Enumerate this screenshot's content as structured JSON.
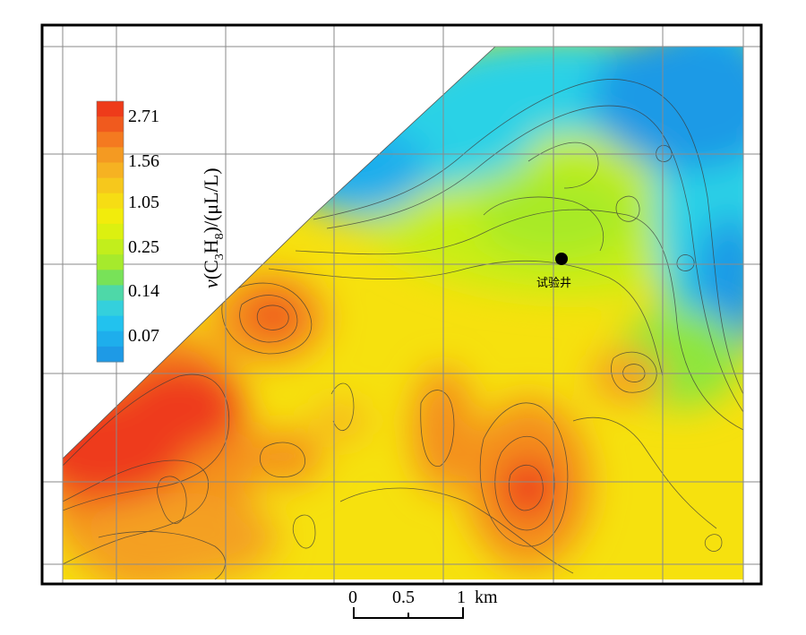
{
  "legend": {
    "labels": [
      "2.71",
      "1.56",
      "1.05",
      "0.25",
      "0.14",
      "0.07"
    ],
    "title_parts": {
      "v": "v",
      "open": "(C",
      "sub3": "3",
      "H": "H",
      "sub8": "8",
      "close": ")/(μL/L)"
    },
    "bands": [
      "#ee3b1a",
      "#f05a1e",
      "#f47a20",
      "#f49a22",
      "#f6b222",
      "#f6c81c",
      "#f6dd14",
      "#f2ec0c",
      "#dcf010",
      "#c2ee1c",
      "#a6ea2c",
      "#78e258",
      "#4ed8a8",
      "#34d0dc",
      "#22c2ee",
      "#1eaeec",
      "#1e9ae6"
    ]
  },
  "well": {
    "label": "试验井"
  },
  "scale_bar": {
    "ticks": [
      "0",
      "0.5",
      "1"
    ],
    "unit": "km"
  },
  "colors": {
    "orange_red": "#ee3b1a",
    "orange": "#f4901f",
    "yellow": "#f6e10e",
    "yellow_green": "#c8ee18",
    "green": "#8ee63e",
    "cyan": "#2cd2e6",
    "blue": "#1e9ae6"
  }
}
